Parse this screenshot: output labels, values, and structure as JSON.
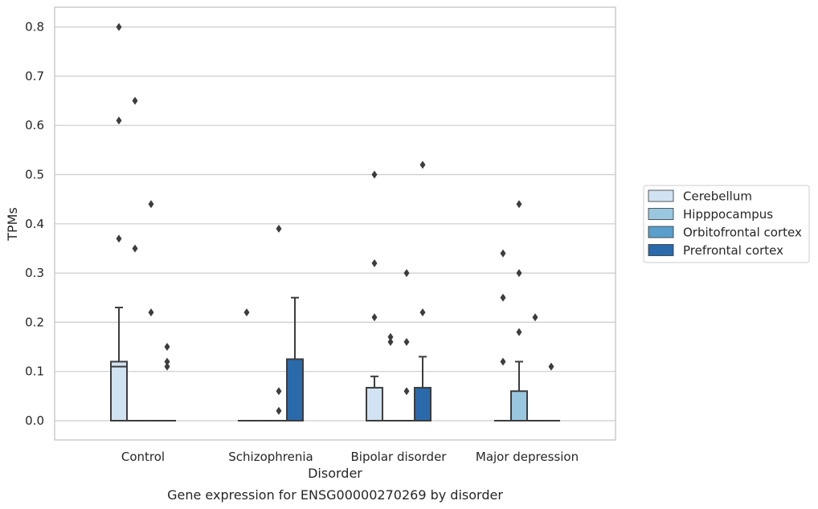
{
  "chart_data": {
    "type": "box",
    "title": "",
    "caption": "Gene expression for ENSG00000270269 by disorder",
    "xlabel": "Disorder",
    "ylabel": "TPMs",
    "ylim": [
      -0.04,
      0.84
    ],
    "yticks": [
      0.0,
      0.1,
      0.2,
      0.3,
      0.4,
      0.5,
      0.6,
      0.7,
      0.8
    ],
    "ytick_labels": [
      "0.0",
      "0.1",
      "0.2",
      "0.3",
      "0.4",
      "0.5",
      "0.6",
      "0.7",
      "0.8"
    ],
    "grid": "horizontal",
    "legend_position": "right",
    "categories": [
      "Control",
      "Schizophrenia",
      "Bipolar disorder",
      "Major depression"
    ],
    "series": [
      {
        "name": "Cerebellum",
        "color": "#d1e2f2",
        "boxes": [
          {
            "q1": 0.0,
            "median": 0.11,
            "q3": 0.12,
            "whisker_low": 0.0,
            "whisker_high": 0.23,
            "outliers": [
              0.37,
              0.61,
              0.8
            ]
          },
          {
            "q1": 0.0,
            "median": 0.0,
            "q3": 0.0,
            "whisker_low": 0.0,
            "whisker_high": 0.0,
            "outliers": [
              0.22
            ]
          },
          {
            "q1": 0.0,
            "median": 0.0,
            "q3": 0.067,
            "whisker_low": 0.0,
            "whisker_high": 0.09,
            "outliers": [
              0.21,
              0.32,
              0.5
            ]
          },
          {
            "q1": 0.0,
            "median": 0.0,
            "q3": 0.0,
            "whisker_low": 0.0,
            "whisker_high": 0.0,
            "outliers": [
              0.12,
              0.25,
              0.34
            ]
          }
        ]
      },
      {
        "name": "Hipppocampus",
        "color": "#9ac7e0",
        "boxes": [
          {
            "q1": 0.0,
            "median": 0.0,
            "q3": 0.0,
            "whisker_low": 0.0,
            "whisker_high": 0.0,
            "outliers": [
              0.35,
              0.65
            ]
          },
          {
            "q1": 0.0,
            "median": 0.0,
            "q3": 0.0,
            "whisker_low": 0.0,
            "whisker_high": 0.0,
            "outliers": []
          },
          {
            "q1": 0.0,
            "median": 0.0,
            "q3": 0.0,
            "whisker_low": 0.0,
            "whisker_high": 0.0,
            "outliers": [
              0.16,
              0.17
            ]
          },
          {
            "q1": 0.0,
            "median": 0.0,
            "q3": 0.06,
            "whisker_low": 0.0,
            "whisker_high": 0.12,
            "outliers": [
              0.18,
              0.3,
              0.44
            ]
          }
        ]
      },
      {
        "name": "Orbitofrontal cortex",
        "color": "#5a9fcc",
        "boxes": [
          {
            "q1": 0.0,
            "median": 0.0,
            "q3": 0.0,
            "whisker_low": 0.0,
            "whisker_high": 0.0,
            "outliers": [
              0.22,
              0.44
            ]
          },
          {
            "q1": 0.0,
            "median": 0.0,
            "q3": 0.0,
            "whisker_low": 0.0,
            "whisker_high": 0.0,
            "outliers": [
              0.02,
              0.06,
              0.39
            ]
          },
          {
            "q1": 0.0,
            "median": 0.0,
            "q3": 0.0,
            "whisker_low": 0.0,
            "whisker_high": 0.0,
            "outliers": [
              0.06,
              0.16,
              0.3
            ]
          },
          {
            "q1": 0.0,
            "median": 0.0,
            "q3": 0.0,
            "whisker_low": 0.0,
            "whisker_high": 0.0,
            "outliers": [
              0.21
            ]
          }
        ]
      },
      {
        "name": "Prefrontal cortex",
        "color": "#2a6aab",
        "boxes": [
          {
            "q1": 0.0,
            "median": 0.0,
            "q3": 0.0,
            "whisker_low": 0.0,
            "whisker_high": 0.0,
            "outliers": [
              0.11,
              0.12,
              0.15
            ]
          },
          {
            "q1": 0.0,
            "median": 0.0,
            "q3": 0.125,
            "whisker_low": 0.0,
            "whisker_high": 0.25,
            "outliers": []
          },
          {
            "q1": 0.0,
            "median": 0.0,
            "q3": 0.067,
            "whisker_low": 0.0,
            "whisker_high": 0.13,
            "outliers": [
              0.22,
              0.52
            ]
          },
          {
            "q1": 0.0,
            "median": 0.0,
            "q3": 0.0,
            "whisker_low": 0.0,
            "whisker_high": 0.0,
            "outliers": [
              0.11
            ]
          }
        ]
      }
    ]
  }
}
